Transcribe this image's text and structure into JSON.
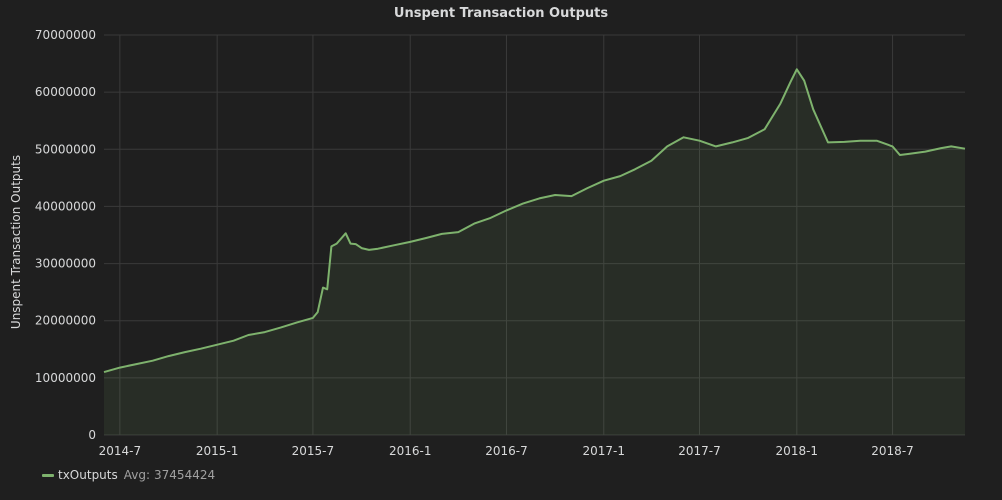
{
  "panel": {
    "title": "Unspent Transaction Outputs"
  },
  "legend": {
    "series_name": "txOutputs",
    "avg_label": "Avg:",
    "avg_value": "37454424"
  },
  "colors": {
    "line": "#7eb26d",
    "grid": "#3a3a3a",
    "background": "#1f1f1f"
  },
  "chart_data": {
    "type": "area",
    "title": "Unspent Transaction Outputs",
    "xlabel": "",
    "ylabel": "Unspent Transaction Outputs",
    "x_range": [
      "2014-06-01",
      "2018-11-15"
    ],
    "ylim": [
      0,
      70000000
    ],
    "y_ticks": [
      0,
      10000000,
      20000000,
      30000000,
      40000000,
      50000000,
      60000000,
      70000000
    ],
    "y_tick_labels": [
      "0",
      "10000000",
      "20000000",
      "30000000",
      "40000000",
      "50000000",
      "60000000",
      "70000000"
    ],
    "x_ticks": [
      "2014-07-01",
      "2015-01-01",
      "2015-07-01",
      "2016-01-01",
      "2016-07-01",
      "2017-01-01",
      "2017-07-01",
      "2018-01-01",
      "2018-07-01"
    ],
    "x_tick_labels": [
      "2014-7",
      "2015-1",
      "2015-7",
      "2016-1",
      "2016-7",
      "2017-1",
      "2017-7",
      "2018-1",
      "2018-7"
    ],
    "grid": true,
    "legend_position": "bottom-left",
    "series": [
      {
        "name": "txOutputs",
        "x": [
          "2014-06-01",
          "2014-07-01",
          "2014-08-01",
          "2014-09-01",
          "2014-10-01",
          "2014-11-01",
          "2014-12-01",
          "2015-01-01",
          "2015-02-01",
          "2015-03-01",
          "2015-04-01",
          "2015-05-01",
          "2015-06-01",
          "2015-07-01",
          "2015-07-10",
          "2015-07-20",
          "2015-07-28",
          "2015-08-05",
          "2015-08-15",
          "2015-09-01",
          "2015-09-10",
          "2015-09-20",
          "2015-10-01",
          "2015-10-15",
          "2015-11-01",
          "2015-12-01",
          "2016-01-01",
          "2016-02-01",
          "2016-03-01",
          "2016-04-01",
          "2016-05-01",
          "2016-06-01",
          "2016-07-01",
          "2016-08-01",
          "2016-09-01",
          "2016-10-01",
          "2016-11-01",
          "2016-12-01",
          "2017-01-01",
          "2017-02-01",
          "2017-03-01",
          "2017-04-01",
          "2017-05-01",
          "2017-06-01",
          "2017-07-01",
          "2017-08-01",
          "2017-09-01",
          "2017-10-01",
          "2017-11-01",
          "2017-12-01",
          "2017-12-20",
          "2018-01-01",
          "2018-01-15",
          "2018-02-01",
          "2018-03-01",
          "2018-04-01",
          "2018-05-01",
          "2018-06-01",
          "2018-07-01",
          "2018-07-15",
          "2018-08-01",
          "2018-09-01",
          "2018-10-01",
          "2018-10-20",
          "2018-11-15"
        ],
        "values": [
          11000000,
          11800000,
          12400000,
          13000000,
          13800000,
          14500000,
          15100000,
          15800000,
          16500000,
          17500000,
          18000000,
          18800000,
          19700000,
          20500000,
          21500000,
          25800000,
          25500000,
          33000000,
          33500000,
          35300000,
          33500000,
          33400000,
          32700000,
          32400000,
          32600000,
          33200000,
          33800000,
          34500000,
          35200000,
          35500000,
          37000000,
          38000000,
          39300000,
          40500000,
          41400000,
          42000000,
          41800000,
          43200000,
          44500000,
          45300000,
          46500000,
          48000000,
          50500000,
          52100000,
          51500000,
          50500000,
          51200000,
          52000000,
          53500000,
          58000000,
          61800000,
          64000000,
          62000000,
          57000000,
          51200000,
          51300000,
          51500000,
          51500000,
          50500000,
          49000000,
          49200000,
          49600000,
          50200000,
          50500000,
          50100000
        ]
      }
    ]
  }
}
